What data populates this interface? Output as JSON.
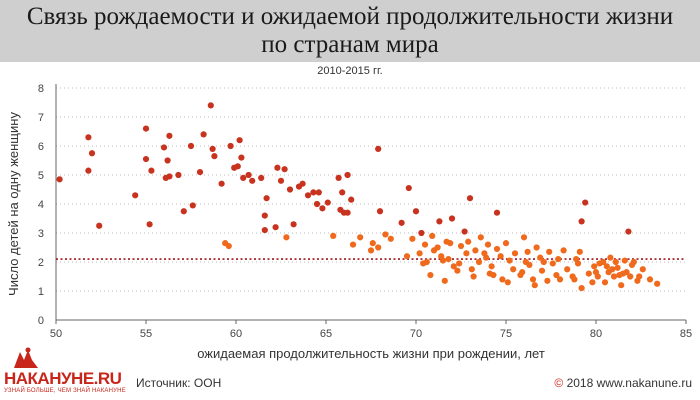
{
  "header": {
    "title_line1": "Связь рождаемости и ожидаемой продолжительности жизни",
    "title_line2": "по странам мира"
  },
  "footer": {
    "source": "Источник: ООН",
    "copyright_symbol": "©",
    "copyright": "2018 www.nakanune.ru"
  },
  "logo": {
    "name": "НАКАНУНЕ.RU",
    "tagline": "УЗНАЙ БОЛЬШЕ, ЧЕМ ЗНАЙ НАКАНУНЕ"
  },
  "chart_data": {
    "type": "scatter",
    "title": "Связь рождаемости и ожидаемой продолжительности жизни по странам мира",
    "subtitle": "2010-2015 гг.",
    "xlabel": "ожидаемая продолжительность жизни при рождении, лет",
    "ylabel": "Число детей на одну женщину",
    "xlim": [
      50,
      85
    ],
    "ylim": [
      0,
      8
    ],
    "x_ticks": [
      50,
      55,
      60,
      65,
      70,
      75,
      80,
      85
    ],
    "y_ticks": [
      0,
      1,
      2,
      3,
      4,
      5,
      6,
      7,
      8
    ],
    "grid": "horizontal dotted",
    "reference_line": {
      "y": 2.1,
      "style": "dotted",
      "color": "#a0141b"
    },
    "colors": {
      "high_fertility": "#c8331f",
      "low_fertility": "#ef6a1c",
      "grid": "#bdbdbd"
    },
    "points": [
      [
        50.2,
        4.85
      ],
      [
        51.8,
        6.3
      ],
      [
        51.8,
        5.15
      ],
      [
        52.0,
        5.75
      ],
      [
        52.4,
        3.25
      ],
      [
        55.0,
        6.6
      ],
      [
        55.0,
        5.55
      ],
      [
        55.2,
        3.3
      ],
      [
        55.3,
        5.15
      ],
      [
        56.0,
        5.95
      ],
      [
        56.1,
        4.9
      ],
      [
        56.2,
        5.5
      ],
      [
        56.3,
        6.35
      ],
      [
        56.3,
        4.95
      ],
      [
        56.8,
        5.0
      ],
      [
        57.5,
        6.0
      ],
      [
        57.6,
        3.95
      ],
      [
        58.0,
        5.1
      ],
      [
        58.2,
        6.4
      ],
      [
        58.6,
        7.4
      ],
      [
        58.7,
        5.9
      ],
      [
        58.8,
        5.65
      ],
      [
        59.2,
        4.7
      ],
      [
        59.4,
        2.65
      ],
      [
        59.6,
        2.55
      ],
      [
        59.7,
        6.0
      ],
      [
        59.9,
        5.25
      ],
      [
        60.1,
        5.3
      ],
      [
        60.2,
        6.2
      ],
      [
        60.3,
        5.6
      ],
      [
        60.4,
        4.9
      ],
      [
        60.7,
        5.0
      ],
      [
        60.9,
        4.8
      ],
      [
        61.4,
        4.9
      ],
      [
        61.6,
        3.6
      ],
      [
        61.6,
        3.1
      ],
      [
        61.7,
        4.2
      ],
      [
        62.2,
        3.2
      ],
      [
        62.3,
        5.25
      ],
      [
        62.5,
        4.8
      ],
      [
        62.7,
        5.2
      ],
      [
        62.8,
        2.85
      ],
      [
        63.0,
        4.5
      ],
      [
        63.5,
        4.6
      ],
      [
        63.7,
        4.7
      ],
      [
        64.0,
        4.3
      ],
      [
        64.3,
        4.4
      ],
      [
        64.5,
        4.0
      ],
      [
        64.6,
        4.4
      ],
      [
        64.8,
        3.85
      ],
      [
        65.1,
        4.05
      ],
      [
        65.4,
        2.9
      ],
      [
        65.7,
        4.9
      ],
      [
        65.8,
        3.8
      ],
      [
        65.9,
        4.4
      ],
      [
        66.0,
        3.7
      ],
      [
        66.2,
        3.7
      ],
      [
        66.2,
        5.0
      ],
      [
        66.4,
        4.15
      ],
      [
        66.5,
        2.6
      ],
      [
        66.9,
        2.85
      ],
      [
        67.5,
        2.4
      ],
      [
        67.6,
        2.65
      ],
      [
        67.9,
        5.9
      ],
      [
        67.9,
        2.5
      ],
      [
        68.3,
        2.95
      ],
      [
        68.6,
        2.8
      ],
      [
        69.2,
        3.35
      ],
      [
        69.6,
        4.55
      ],
      [
        69.8,
        2.8
      ],
      [
        70.0,
        3.75
      ],
      [
        70.2,
        2.3
      ],
      [
        70.3,
        3.0
      ],
      [
        70.5,
        2.6
      ],
      [
        70.6,
        2.0
      ],
      [
        70.8,
        1.55
      ],
      [
        71.0,
        2.4
      ],
      [
        71.2,
        2.5
      ],
      [
        71.3,
        3.4
      ],
      [
        71.4,
        2.2
      ],
      [
        71.5,
        2.05
      ],
      [
        71.6,
        1.35
      ],
      [
        71.7,
        2.7
      ],
      [
        71.8,
        2.1
      ],
      [
        72.0,
        3.5
      ],
      [
        72.1,
        1.85
      ],
      [
        72.3,
        1.7
      ],
      [
        72.5,
        2.55
      ],
      [
        72.7,
        3.05
      ],
      [
        72.8,
        2.3
      ],
      [
        72.9,
        2.7
      ],
      [
        73.0,
        4.2
      ],
      [
        73.1,
        1.75
      ],
      [
        73.3,
        2.4
      ],
      [
        73.5,
        2.0
      ],
      [
        73.6,
        2.85
      ],
      [
        73.8,
        2.3
      ],
      [
        74.0,
        2.6
      ],
      [
        74.2,
        1.85
      ],
      [
        74.3,
        1.55
      ],
      [
        74.5,
        2.45
      ],
      [
        74.5,
        3.7
      ],
      [
        74.7,
        2.2
      ],
      [
        74.8,
        1.4
      ],
      [
        75.0,
        2.65
      ],
      [
        75.2,
        2.05
      ],
      [
        75.4,
        1.75
      ],
      [
        75.5,
        2.3
      ],
      [
        75.8,
        1.55
      ],
      [
        76.0,
        2.85
      ],
      [
        76.1,
        2.0
      ],
      [
        76.3,
        1.9
      ],
      [
        76.5,
        1.4
      ],
      [
        76.7,
        2.5
      ],
      [
        76.9,
        2.15
      ],
      [
        77.0,
        1.7
      ],
      [
        77.3,
        1.35
      ],
      [
        77.4,
        2.35
      ],
      [
        77.6,
        1.95
      ],
      [
        77.8,
        1.55
      ],
      [
        78.2,
        2.4
      ],
      [
        78.4,
        1.75
      ],
      [
        78.7,
        1.5
      ],
      [
        78.8,
        1.4
      ],
      [
        79.0,
        1.95
      ],
      [
        79.1,
        2.35
      ],
      [
        79.2,
        1.1
      ],
      [
        79.2,
        3.4
      ],
      [
        79.4,
        4.05
      ],
      [
        79.6,
        1.6
      ],
      [
        79.8,
        1.3
      ],
      [
        80.0,
        1.65
      ],
      [
        80.2,
        1.95
      ],
      [
        80.5,
        1.3
      ],
      [
        80.7,
        1.65
      ],
      [
        80.8,
        2.15
      ],
      [
        81.0,
        1.5
      ],
      [
        81.2,
        1.8
      ],
      [
        81.4,
        1.2
      ],
      [
        81.6,
        2.05
      ],
      [
        81.8,
        3.05
      ],
      [
        81.9,
        1.5
      ],
      [
        82.0,
        1.9
      ],
      [
        82.3,
        1.35
      ],
      [
        82.6,
        1.75
      ],
      [
        83.0,
        1.4
      ],
      [
        83.4,
        1.25
      ],
      [
        54.4,
        4.3
      ],
      [
        57.1,
        3.75
      ],
      [
        63.2,
        3.3
      ],
      [
        68.0,
        3.75
      ],
      [
        70.9,
        2.9
      ],
      [
        72.4,
        1.95
      ],
      [
        73.9,
        2.15
      ],
      [
        75.9,
        1.65
      ],
      [
        76.6,
        1.2
      ],
      [
        77.9,
        2.1
      ],
      [
        78.9,
        2.1
      ],
      [
        80.4,
        2.0
      ],
      [
        81.1,
        2.0
      ],
      [
        81.5,
        1.6
      ],
      [
        82.1,
        2.0
      ],
      [
        80.1,
        1.5
      ],
      [
        80.9,
        1.75
      ],
      [
        81.7,
        1.65
      ],
      [
        80.6,
        1.85
      ],
      [
        81.3,
        1.55
      ],
      [
        82.4,
        1.5
      ],
      [
        79.9,
        1.85
      ],
      [
        74.1,
        1.6
      ],
      [
        75.1,
        1.3
      ],
      [
        76.2,
        2.35
      ],
      [
        77.1,
        2.0
      ],
      [
        78.0,
        1.4
      ],
      [
        73.2,
        1.5
      ],
      [
        71.9,
        2.65
      ],
      [
        69.5,
        2.2
      ],
      [
        70.4,
        1.95
      ]
    ]
  }
}
